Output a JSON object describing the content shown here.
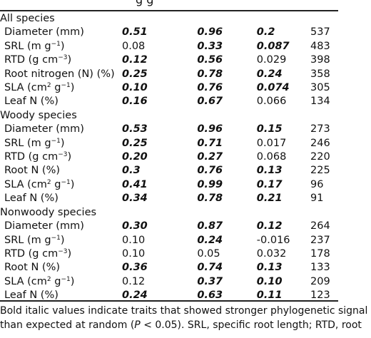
{
  "header": {
    "cut_text": "g      g"
  },
  "groups": [
    {
      "name": "All species",
      "rows": [
        {
          "label": "Diameter (mm)",
          "base": "Diameter (mm)",
          "sup": "",
          "tail": "",
          "c1": "0.51",
          "c1b": true,
          "c2": "0.96",
          "c2b": true,
          "c3": "0.2",
          "c3b": true,
          "c4": "537"
        },
        {
          "label": "SRL (m g−1)",
          "base": "SRL (m g",
          "sup": "−1",
          "tail": ")",
          "c1": "0.08",
          "c1b": false,
          "c2": "0.33",
          "c2b": true,
          "c3": "0.087",
          "c3b": true,
          "c4": "483"
        },
        {
          "label": "RTD (g cm−3)",
          "base": "RTD (g cm",
          "sup": "−3",
          "tail": ")",
          "c1": "0.12",
          "c1b": true,
          "c2": "0.56",
          "c2b": true,
          "c3": "0.029",
          "c3b": false,
          "c4": "398"
        },
        {
          "label": "Root nitrogen (N) (%)",
          "base": "Root nitrogen (N) (%)",
          "sup": "",
          "tail": "",
          "c1": "0.25",
          "c1b": true,
          "c2": "0.78",
          "c2b": true,
          "c3": "0.24",
          "c3b": true,
          "c4": "358"
        },
        {
          "label": "SLA (cm2 g−1)",
          "base": "SLA (cm",
          "sup": "2",
          "tail": " g",
          "sup2": "−1",
          "tail2": ")",
          "c1": "0.10",
          "c1b": true,
          "c2": "0.76",
          "c2b": true,
          "c3": "0.074",
          "c3b": true,
          "c4": "305"
        },
        {
          "label": "Leaf N (%)",
          "base": "Leaf N (%)",
          "sup": "",
          "tail": "",
          "c1": "0.16",
          "c1b": true,
          "c2": "0.67",
          "c2b": true,
          "c3": "0.066",
          "c3b": false,
          "c4": "134"
        }
      ]
    },
    {
      "name": "Woody species",
      "rows": [
        {
          "label": "Diameter (mm)",
          "base": "Diameter (mm)",
          "sup": "",
          "tail": "",
          "c1": "0.53",
          "c1b": true,
          "c2": "0.96",
          "c2b": true,
          "c3": "0.15",
          "c3b": true,
          "c4": "273"
        },
        {
          "label": "SRL (m g−1)",
          "base": "SRL (m g",
          "sup": "−1",
          "tail": ")",
          "c1": "0.25",
          "c1b": true,
          "c2": "0.71",
          "c2b": true,
          "c3": "0.017",
          "c3b": false,
          "c4": "246"
        },
        {
          "label": "RTD (g cm−3)",
          "base": "RTD (g cm",
          "sup": "−3",
          "tail": ")",
          "c1": "0.20",
          "c1b": true,
          "c2": "0.27",
          "c2b": true,
          "c3": "0.068",
          "c3b": false,
          "c4": "220"
        },
        {
          "label": "Root N (%)",
          "base": "Root N (%)",
          "sup": "",
          "tail": "",
          "c1": "0.3",
          "c1b": true,
          "c2": "0.76",
          "c2b": true,
          "c3": "0.13",
          "c3b": true,
          "c4": "225"
        },
        {
          "label": "SLA (cm2 g−1)",
          "base": "SLA (cm",
          "sup": "2",
          "tail": " g",
          "sup2": "−1",
          "tail2": ")",
          "c1": "0.41",
          "c1b": true,
          "c2": "0.99",
          "c2b": true,
          "c3": "0.17",
          "c3b": true,
          "c4": "96"
        },
        {
          "label": "Leaf N (%)",
          "base": "Leaf N (%)",
          "sup": "",
          "tail": "",
          "c1": "0.34",
          "c1b": true,
          "c2": "0.78",
          "c2b": true,
          "c3": "0.21",
          "c3b": true,
          "c4": "91"
        }
      ]
    },
    {
      "name": "Nonwoody species",
      "rows": [
        {
          "label": "Diameter (mm)",
          "base": "Diameter (mm)",
          "sup": "",
          "tail": "",
          "c1": "0.30",
          "c1b": true,
          "c2": "0.87",
          "c2b": true,
          "c3": "0.12",
          "c3b": true,
          "c4": "264"
        },
        {
          "label": "SRL (m g−1)",
          "base": "SRL (m g",
          "sup": "−1",
          "tail": ")",
          "c1": "0.10",
          "c1b": false,
          "c2": "0.24",
          "c2b": true,
          "c3": "-0.016",
          "c3b": false,
          "c4": "237"
        },
        {
          "label": "RTD (g cm−3)",
          "base": "RTD (g cm",
          "sup": "−3",
          "tail": ")",
          "c1": "0.10",
          "c1b": false,
          "c2": "0.05",
          "c2b": false,
          "c3": "0.032",
          "c3b": false,
          "c4": "178"
        },
        {
          "label": "Root N (%)",
          "base": "Root N (%)",
          "sup": "",
          "tail": "",
          "c1": "0.36",
          "c1b": true,
          "c2": "0.74",
          "c2b": true,
          "c3": "0.13",
          "c3b": true,
          "c4": "133"
        },
        {
          "label": "SLA (cm2 g−1)",
          "base": "SLA (cm",
          "sup": "2",
          "tail": " g",
          "sup2": "−1",
          "tail2": ")",
          "c1": "0.12",
          "c1b": false,
          "c2": "0.37",
          "c2b": true,
          "c3": "0.10",
          "c3b": true,
          "c4": "209"
        },
        {
          "label": "Leaf N (%)",
          "base": "Leaf N (%)",
          "sup": "",
          "tail": "",
          "c1": "0.24",
          "c1b": true,
          "c2": "0.63",
          "c2b": true,
          "c3": "0.11",
          "c3b": true,
          "c4": "123"
        }
      ]
    }
  ],
  "footnote": {
    "line1_before": "Bold italic values indicate traits that showed stronger phylogenetic signal",
    "line2_a": "than expected at random (",
    "line2_p": "P",
    "line2_b": " < 0.05). SRL, specific root length; RTD, root"
  }
}
